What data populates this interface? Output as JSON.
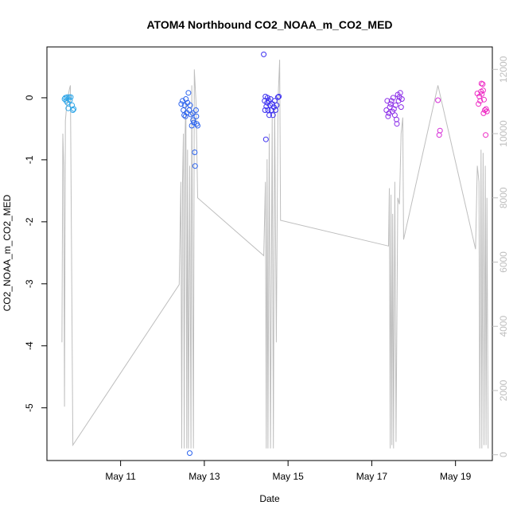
{
  "chart_data": {
    "type": "scatter",
    "title": "ATOM4 Northbound CO2_NOAA_m_CO2_MED",
    "xlabel": "Date",
    "ylabel": "CO2_NOAA_m_CO2_MED",
    "xlim_days": [
      9.24,
      19.88
    ],
    "ylim": [
      -5.85,
      0.82
    ],
    "y2lim": [
      -180,
      12700
    ],
    "x_ticks": [
      {
        "day": 11,
        "label": "May 11"
      },
      {
        "day": 13,
        "label": "May 13"
      },
      {
        "day": 15,
        "label": "May 15"
      },
      {
        "day": 17,
        "label": "May 17"
      },
      {
        "day": 19,
        "label": "May 19"
      }
    ],
    "y_ticks": [
      0,
      -1,
      -2,
      -3,
      -4,
      -5
    ],
    "y2_ticks": [
      0,
      2000,
      4000,
      6000,
      8000,
      10000,
      12000
    ],
    "colors": {
      "axis": "#000000",
      "secondary_axis": "#bebebe",
      "line": "#bebebe"
    },
    "series": [
      {
        "name": "CO2_NOAA_m_CO2_MED",
        "style": "open-circle",
        "points": [
          {
            "day": 9.66,
            "value": -0.02,
            "color": "#2fa6e8"
          },
          {
            "day": 9.68,
            "value": 0.0,
            "color": "#2fa6e8"
          },
          {
            "day": 9.7,
            "value": -0.05,
            "color": "#2fa6e8"
          },
          {
            "day": 9.72,
            "value": 0.01,
            "color": "#2fa6e8"
          },
          {
            "day": 9.73,
            "value": -0.08,
            "color": "#2fa6e8"
          },
          {
            "day": 9.75,
            "value": -0.17,
            "color": "#2fa6e8"
          },
          {
            "day": 9.77,
            "value": 0.01,
            "color": "#2fa6e8"
          },
          {
            "day": 9.79,
            "value": -0.04,
            "color": "#2fa6e8"
          },
          {
            "day": 9.81,
            "value": 0.01,
            "color": "#2fa6e8"
          },
          {
            "day": 9.84,
            "value": -0.12,
            "color": "#2fa6e8"
          },
          {
            "day": 9.86,
            "value": -0.2,
            "color": "#2fa6e8"
          },
          {
            "day": 9.88,
            "value": -0.18,
            "color": "#2fa6e8"
          },
          {
            "day": 12.45,
            "value": -0.1,
            "color": "#2b63ee"
          },
          {
            "day": 12.48,
            "value": -0.05,
            "color": "#2b63ee"
          },
          {
            "day": 12.5,
            "value": -0.2,
            "color": "#2b63ee"
          },
          {
            "day": 12.52,
            "value": -0.28,
            "color": "#2b63ee"
          },
          {
            "day": 12.53,
            "value": -0.12,
            "color": "#2b63ee"
          },
          {
            "day": 12.55,
            "value": -0.3,
            "color": "#2b63ee"
          },
          {
            "day": 12.56,
            "value": -0.02,
            "color": "#2b63ee"
          },
          {
            "day": 12.58,
            "value": -0.24,
            "color": "#2b63ee"
          },
          {
            "day": 12.6,
            "value": -0.08,
            "color": "#2b63ee"
          },
          {
            "day": 12.62,
            "value": 0.08,
            "color": "#2b63ee"
          },
          {
            "day": 12.64,
            "value": -0.2,
            "color": "#2b63ee"
          },
          {
            "day": 12.65,
            "value": -5.73,
            "color": "#2b63ee"
          },
          {
            "day": 12.66,
            "value": -0.12,
            "color": "#2b63ee"
          },
          {
            "day": 12.68,
            "value": -0.27,
            "color": "#2b63ee"
          },
          {
            "day": 12.7,
            "value": -0.45,
            "color": "#2b63ee"
          },
          {
            "day": 12.72,
            "value": -0.25,
            "color": "#2b63ee"
          },
          {
            "day": 12.73,
            "value": -0.36,
            "color": "#2b63ee"
          },
          {
            "day": 12.75,
            "value": -0.4,
            "color": "#2b63ee"
          },
          {
            "day": 12.77,
            "value": -0.88,
            "color": "#2b63ee"
          },
          {
            "day": 12.78,
            "value": -1.1,
            "color": "#2b63ee"
          },
          {
            "day": 12.8,
            "value": -0.2,
            "color": "#2b63ee"
          },
          {
            "day": 12.81,
            "value": -0.3,
            "color": "#2b63ee"
          },
          {
            "day": 12.82,
            "value": -0.42,
            "color": "#2b63ee"
          },
          {
            "day": 12.84,
            "value": -0.45,
            "color": "#2b63ee"
          },
          {
            "day": 14.42,
            "value": 0.7,
            "color": "#3b2ff0"
          },
          {
            "day": 14.44,
            "value": -0.05,
            "color": "#3b2ff0"
          },
          {
            "day": 14.45,
            "value": -0.2,
            "color": "#3b2ff0"
          },
          {
            "day": 14.46,
            "value": 0.02,
            "color": "#3b2ff0"
          },
          {
            "day": 14.47,
            "value": -0.67,
            "color": "#3b2ff0"
          },
          {
            "day": 14.48,
            "value": -0.14,
            "color": "#3b2ff0"
          },
          {
            "day": 14.5,
            "value": -0.08,
            "color": "#3b2ff0"
          },
          {
            "day": 14.51,
            "value": 0.0,
            "color": "#3b2ff0"
          },
          {
            "day": 14.52,
            "value": -0.2,
            "color": "#3b2ff0"
          },
          {
            "day": 14.54,
            "value": -0.05,
            "color": "#3b2ff0"
          },
          {
            "day": 14.55,
            "value": -0.28,
            "color": "#3b2ff0"
          },
          {
            "day": 14.57,
            "value": -0.12,
            "color": "#3b2ff0"
          },
          {
            "day": 14.58,
            "value": -0.02,
            "color": "#3b2ff0"
          },
          {
            "day": 14.6,
            "value": -0.2,
            "color": "#3b2ff0"
          },
          {
            "day": 14.62,
            "value": -0.1,
            "color": "#3b2ff0"
          },
          {
            "day": 14.64,
            "value": -0.28,
            "color": "#3b2ff0"
          },
          {
            "day": 14.66,
            "value": -0.15,
            "color": "#3b2ff0"
          },
          {
            "day": 14.68,
            "value": -0.05,
            "color": "#3b2ff0"
          },
          {
            "day": 14.7,
            "value": -0.2,
            "color": "#3b2ff0"
          },
          {
            "day": 14.73,
            "value": -0.12,
            "color": "#3b2ff0"
          },
          {
            "day": 14.76,
            "value": 0.01,
            "color": "#3b2ff0"
          },
          {
            "day": 14.78,
            "value": 0.02,
            "color": "#3b2ff0"
          },
          {
            "day": 17.35,
            "value": -0.2,
            "color": "#8a2be8"
          },
          {
            "day": 17.37,
            "value": -0.05,
            "color": "#8a2be8"
          },
          {
            "day": 17.39,
            "value": -0.3,
            "color": "#8a2be8"
          },
          {
            "day": 17.41,
            "value": -0.25,
            "color": "#8a2be8"
          },
          {
            "day": 17.43,
            "value": -0.15,
            "color": "#8a2be8"
          },
          {
            "day": 17.45,
            "value": -0.1,
            "color": "#8a2be8"
          },
          {
            "day": 17.47,
            "value": -0.05,
            "color": "#8a2be8"
          },
          {
            "day": 17.49,
            "value": -0.22,
            "color": "#8a2be8"
          },
          {
            "day": 17.51,
            "value": 0.0,
            "color": "#8a2be8"
          },
          {
            "day": 17.53,
            "value": -0.18,
            "color": "#8a2be8"
          },
          {
            "day": 17.55,
            "value": -0.28,
            "color": "#8a2be8"
          },
          {
            "day": 17.57,
            "value": -0.12,
            "color": "#8a2be8"
          },
          {
            "day": 17.59,
            "value": -0.35,
            "color": "#8a2be8"
          },
          {
            "day": 17.6,
            "value": -0.42,
            "color": "#8a2be8"
          },
          {
            "day": 17.62,
            "value": 0.05,
            "color": "#8a2be8"
          },
          {
            "day": 17.64,
            "value": -0.05,
            "color": "#8a2be8"
          },
          {
            "day": 17.66,
            "value": 0.01,
            "color": "#8a2be8"
          },
          {
            "day": 17.68,
            "value": 0.08,
            "color": "#8a2be8"
          },
          {
            "day": 17.7,
            "value": -0.15,
            "color": "#8a2be8"
          },
          {
            "day": 17.72,
            "value": -0.02,
            "color": "#8a2be8"
          },
          {
            "day": 18.58,
            "value": -0.04,
            "color": "#d62bd8"
          },
          {
            "day": 18.61,
            "value": -0.6,
            "color": "#d62bd8"
          },
          {
            "day": 18.63,
            "value": -0.53,
            "color": "#d62bd8"
          },
          {
            "day": 19.52,
            "value": 0.07,
            "color": "#ee2bc4"
          },
          {
            "day": 19.55,
            "value": -0.1,
            "color": "#ee2bc4"
          },
          {
            "day": 19.57,
            "value": 0.02,
            "color": "#ee2bc4"
          },
          {
            "day": 19.59,
            "value": -0.05,
            "color": "#ee2bc4"
          },
          {
            "day": 19.61,
            "value": 0.1,
            "color": "#ee2bc4"
          },
          {
            "day": 19.62,
            "value": 0.23,
            "color": "#ee2bc4"
          },
          {
            "day": 19.63,
            "value": 0.06,
            "color": "#ee2bc4"
          },
          {
            "day": 19.65,
            "value": 0.22,
            "color": "#ee2bc4"
          },
          {
            "day": 19.66,
            "value": 0.12,
            "color": "#ee2bc4"
          },
          {
            "day": 19.67,
            "value": -0.25,
            "color": "#ee2bc4"
          },
          {
            "day": 19.68,
            "value": -0.03,
            "color": "#ee2bc4"
          },
          {
            "day": 19.7,
            "value": -0.2,
            "color": "#ee2bc4"
          },
          {
            "day": 19.72,
            "value": -0.6,
            "color": "#ee2bc4"
          },
          {
            "day": 19.73,
            "value": -0.18,
            "color": "#ee2bc4"
          },
          {
            "day": 19.75,
            "value": -0.22,
            "color": "#ee2bc4"
          }
        ]
      },
      {
        "name": "secondary_line",
        "axis": "right",
        "style": "line",
        "points": [
          [
            9.6,
            3500
          ],
          [
            9.62,
            10000
          ],
          [
            9.64,
            9000
          ],
          [
            9.66,
            1500
          ],
          [
            9.68,
            10400
          ],
          [
            9.72,
            11000
          ],
          [
            9.78,
            11400
          ],
          [
            9.8,
            11500
          ],
          [
            9.86,
            300
          ],
          [
            12.4,
            5300
          ],
          [
            12.44,
            8500
          ],
          [
            12.46,
            200
          ],
          [
            12.48,
            8500
          ],
          [
            12.5,
            10000
          ],
          [
            12.52,
            200
          ],
          [
            12.54,
            10000
          ],
          [
            12.56,
            11000
          ],
          [
            12.58,
            200
          ],
          [
            12.6,
            9500
          ],
          [
            12.62,
            200
          ],
          [
            12.65,
            9000
          ],
          [
            12.68,
            200
          ],
          [
            12.7,
            11500
          ],
          [
            12.72,
            5500
          ],
          [
            12.74,
            200
          ],
          [
            12.76,
            12000
          ],
          [
            12.8,
            11000
          ],
          [
            12.84,
            8000
          ],
          [
            14.42,
            6200
          ],
          [
            14.46,
            8500
          ],
          [
            14.48,
            200
          ],
          [
            14.5,
            9200
          ],
          [
            14.52,
            200
          ],
          [
            14.55,
            10000
          ],
          [
            14.58,
            200
          ],
          [
            14.62,
            10500
          ],
          [
            14.65,
            200
          ],
          [
            14.68,
            11000
          ],
          [
            14.72,
            3500
          ],
          [
            14.76,
            11000
          ],
          [
            14.8,
            12300
          ],
          [
            14.82,
            7300
          ],
          [
            17.4,
            6500
          ],
          [
            17.42,
            8300
          ],
          [
            17.44,
            200
          ],
          [
            17.46,
            8100
          ],
          [
            17.48,
            300
          ],
          [
            17.5,
            7500
          ],
          [
            17.52,
            200
          ],
          [
            17.55,
            8500
          ],
          [
            17.58,
            400
          ],
          [
            17.62,
            8000
          ],
          [
            17.66,
            7800
          ],
          [
            17.7,
            10000
          ],
          [
            17.74,
            10500
          ],
          [
            17.76,
            6700
          ],
          [
            18.58,
            11500
          ],
          [
            19.48,
            6400
          ],
          [
            19.52,
            9000
          ],
          [
            19.56,
            8500
          ],
          [
            19.58,
            200
          ],
          [
            19.61,
            9500
          ],
          [
            19.63,
            200
          ],
          [
            19.66,
            9400
          ],
          [
            19.68,
            300
          ],
          [
            19.71,
            9000
          ],
          [
            19.73,
            300
          ],
          [
            19.75,
            8000
          ],
          [
            19.78,
            200
          ]
        ]
      }
    ]
  }
}
